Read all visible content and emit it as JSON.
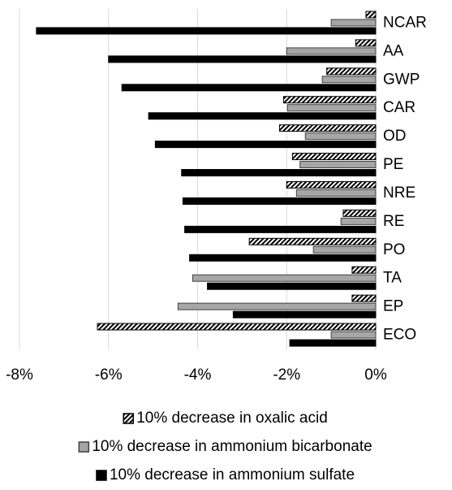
{
  "chart_data": {
    "type": "hbar",
    "categories": [
      "NCAR",
      "AA",
      "GWP",
      "CAR",
      "OD",
      "PE",
      "NRE",
      "RE",
      "PO",
      "TA",
      "EP",
      "ECO"
    ],
    "series": [
      {
        "name": "10% decrease in oxalic acid",
        "color": "#000000",
        "pattern": "hatch",
        "values": [
          -0.22,
          -0.45,
          -1.1,
          -2.07,
          -2.16,
          -1.87,
          -2.0,
          -0.73,
          -2.84,
          -0.53,
          -0.53,
          -6.25
        ]
      },
      {
        "name": "10% decrease in ammonium bicarbonate",
        "color": "#a6a6a6",
        "pattern": "solid",
        "values": [
          -1.0,
          -2.0,
          -1.2,
          -1.98,
          -1.58,
          -1.7,
          -1.78,
          -0.78,
          -1.4,
          -4.11,
          -4.44,
          -1.0
        ]
      },
      {
        "name": "10% decrease in ammonium sulfate",
        "color": "#000000",
        "pattern": "solid",
        "values": [
          -7.62,
          -6.0,
          -5.7,
          -5.1,
          -4.95,
          -4.36,
          -4.33,
          -4.29,
          -4.18,
          -3.78,
          -3.2,
          -1.93
        ]
      }
    ],
    "xlim": [
      -8,
      0
    ],
    "xticks": [
      {
        "value": -8,
        "label": "-8%"
      },
      {
        "value": -6,
        "label": "-6%"
      },
      {
        "value": -4,
        "label": "-4%"
      },
      {
        "value": -2,
        "label": "-2%"
      },
      {
        "value": 0,
        "label": "0%"
      }
    ],
    "grid": true,
    "legend": "bottom"
  }
}
